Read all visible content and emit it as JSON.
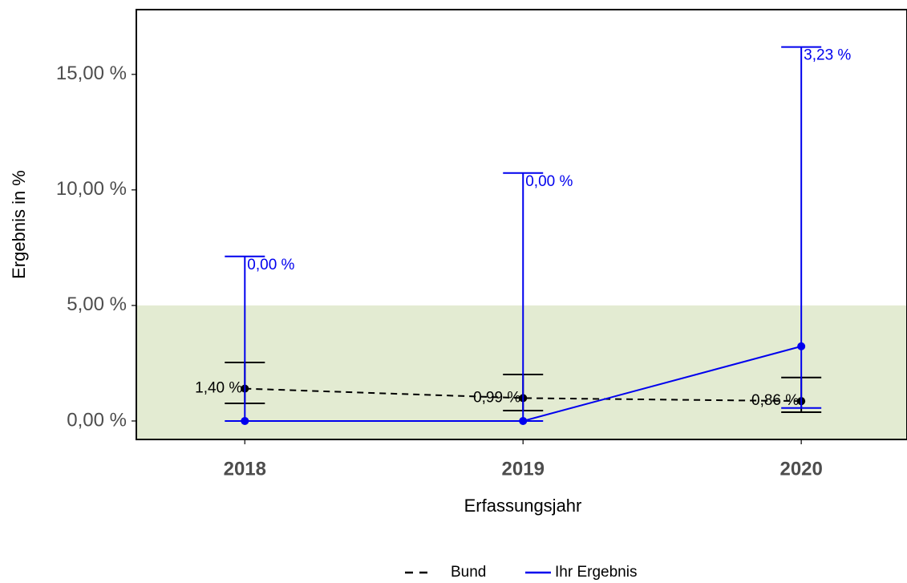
{
  "chart_data": {
    "type": "line",
    "x_label": "Erfassungsjahr",
    "y_label": "Ergebnis in %",
    "x": [
      2018,
      2019,
      2020
    ],
    "xlim": [
      2017.61,
      2020.38
    ],
    "xticks": [
      2018,
      2019,
      2020
    ],
    "ylim": [
      -0.8,
      17.8
    ],
    "yticks": [
      {
        "value": 0,
        "label": "0,00 %"
      },
      {
        "value": 5,
        "label": "5,00 %"
      },
      {
        "value": 10,
        "label": "10,00 %"
      },
      {
        "value": 15,
        "label": "15,00 %"
      }
    ],
    "reference_upper": 5,
    "reference_color": "#e3ebd2",
    "series": [
      {
        "name": "Bund",
        "color": "#000000",
        "dash": true,
        "values": [
          1.4,
          0.99,
          0.86
        ],
        "value_labels": [
          "1,40 %",
          "0,99 %",
          "0,86 %"
        ],
        "lower": [
          0.76,
          0.45,
          0.38
        ],
        "upper": [
          2.53,
          2.01,
          1.88
        ]
      },
      {
        "name": "Ihr Ergebnis",
        "color": "#0000ee",
        "dash": false,
        "values": [
          0,
          0,
          3.23
        ],
        "value_labels": [
          "0,00 %",
          "0,00 %",
          "3,23 %"
        ],
        "lower": [
          0,
          0,
          0.56
        ],
        "upper": [
          7.12,
          10.73,
          16.18
        ]
      }
    ]
  }
}
